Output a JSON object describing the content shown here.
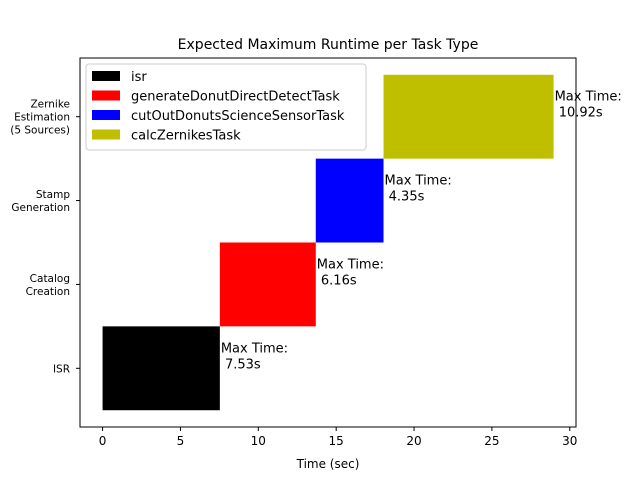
{
  "chart_data": {
    "type": "bar",
    "orientation": "horizontal",
    "stacked_timeline": true,
    "title": "Expected Maximum Runtime per Task Type",
    "xlabel": "Time (sec)",
    "ylabel": "",
    "xlim": [
      -1.45,
      30.4
    ],
    "xticks": [
      0,
      5,
      10,
      15,
      20,
      25,
      30
    ],
    "xtick_labels": [
      "0",
      "5",
      "10",
      "15",
      "20",
      "25",
      "30"
    ],
    "categories": [
      [
        "ISR"
      ],
      [
        "Catalog",
        "Creation"
      ],
      [
        "Stamp",
        "Generation"
      ],
      [
        "Zernike",
        "Estimation",
        "(5 Sources)"
      ]
    ],
    "bars": [
      {
        "category_index": 0,
        "series": "isr",
        "start": 0,
        "value": 7.53,
        "color": "#000000",
        "label_lines": [
          "Max Time:",
          " 7.53s"
        ]
      },
      {
        "category_index": 1,
        "series": "generateDonutDirectDetectTask",
        "start": 7.53,
        "value": 6.16,
        "color": "#ff0000",
        "label_lines": [
          "Max Time:",
          " 6.16s"
        ]
      },
      {
        "category_index": 2,
        "series": "cutOutDonutsScienceSensorTask",
        "start": 13.69,
        "value": 4.35,
        "color": "#0000ff",
        "label_lines": [
          "Max Time:",
          " 4.35s"
        ]
      },
      {
        "category_index": 3,
        "series": "calcZernikesTask",
        "start": 18.04,
        "value": 10.92,
        "color": "#bfbf00",
        "label_lines": [
          "Max Time:",
          " 10.92s"
        ]
      }
    ],
    "legend": {
      "placement": "top-left",
      "entries": [
        {
          "name": "isr",
          "color": "#000000"
        },
        {
          "name": "generateDonutDirectDetectTask",
          "color": "#ff0000"
        },
        {
          "name": "cutOutDonutsScienceSensorTask",
          "color": "#0000ff"
        },
        {
          "name": "calcZernikesTask",
          "color": "#bfbf00"
        }
      ]
    },
    "grid": false
  }
}
